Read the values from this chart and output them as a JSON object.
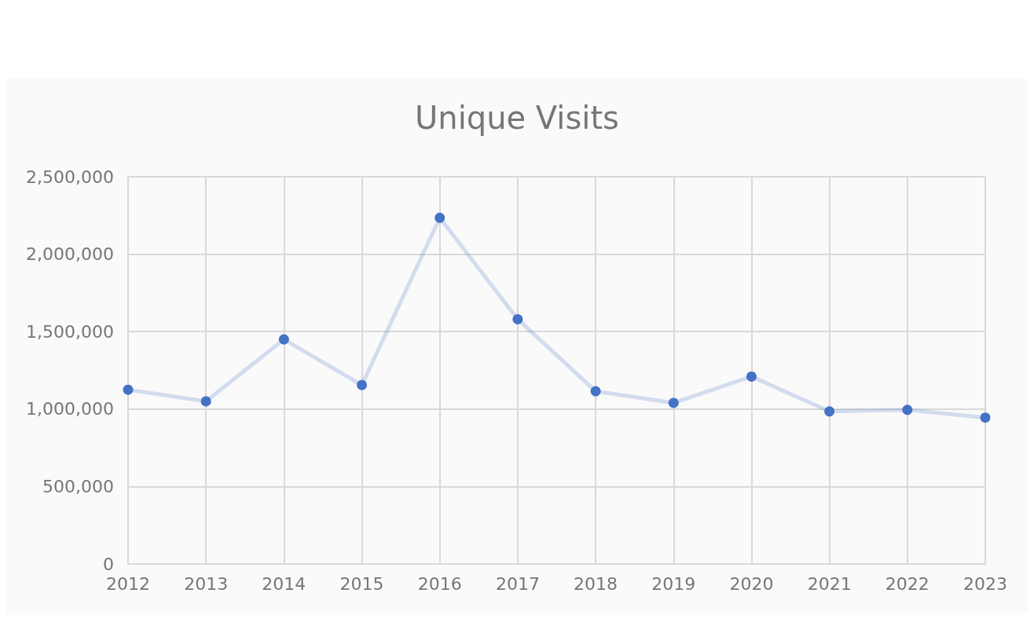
{
  "chart_data": {
    "type": "line",
    "title": "Unique Visits",
    "categories": [
      "2012",
      "2013",
      "2014",
      "2015",
      "2016",
      "2017",
      "2018",
      "2019",
      "2020",
      "2021",
      "2022",
      "2023"
    ],
    "series": [
      {
        "color": "#4472c4",
        "values": [
          1125000,
          1050000,
          1450000,
          1155000,
          2235000,
          1580000,
          1115000,
          1040000,
          1210000,
          985000,
          995000,
          945000
        ]
      }
    ],
    "ylim": [
      0,
      2500000
    ],
    "yticks": [
      0,
      {
        "value": 500000,
        "label": "500,000"
      },
      {
        "value": 1000000,
        "label": "1,000,000"
      },
      {
        "value": 1500000,
        "label": "1,500,000"
      },
      {
        "value": 2000000,
        "label": "2,000,000"
      },
      {
        "value": 2500000,
        "label": "2,500,000"
      }
    ],
    "grid": true,
    "marker": "circle",
    "line_style": "solid"
  }
}
